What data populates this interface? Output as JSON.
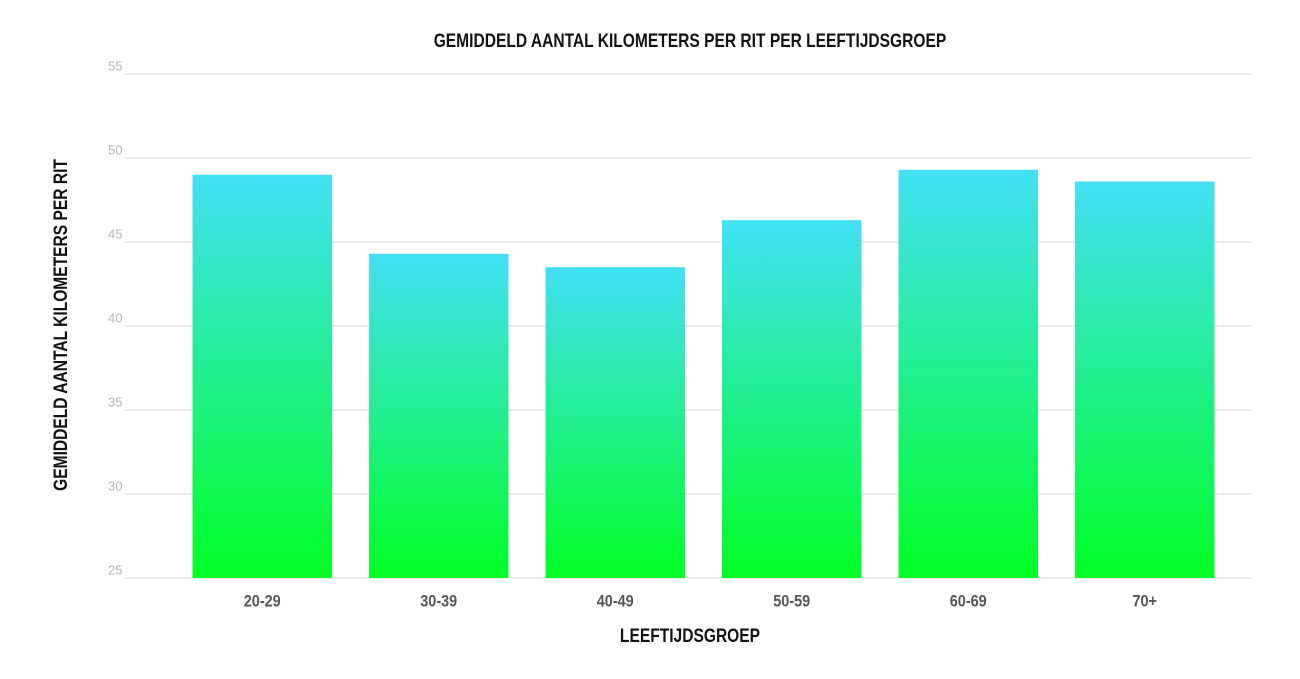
{
  "chart_data": {
    "type": "bar",
    "title": "GEMIDDELD AANTAL KILOMETERS PER RIT PER LEEFTIJDSGROEP",
    "x_label": "LEEFTIJDSGROEP",
    "y_label": "GEMIDDELD AANTAL KILOMETERS PER RIT",
    "categories": [
      "20-29",
      "30-39",
      "40-49",
      "50-59",
      "60-69",
      "70+"
    ],
    "values": [
      49.0,
      44.3,
      43.5,
      46.3,
      49.3,
      48.6
    ],
    "gradient": [
      "#42e0f6",
      "#00ff24"
    ],
    "ylim": [
      25,
      55
    ],
    "yticks": [
      25,
      30,
      35,
      40,
      45,
      50,
      55
    ],
    "grid": true
  }
}
